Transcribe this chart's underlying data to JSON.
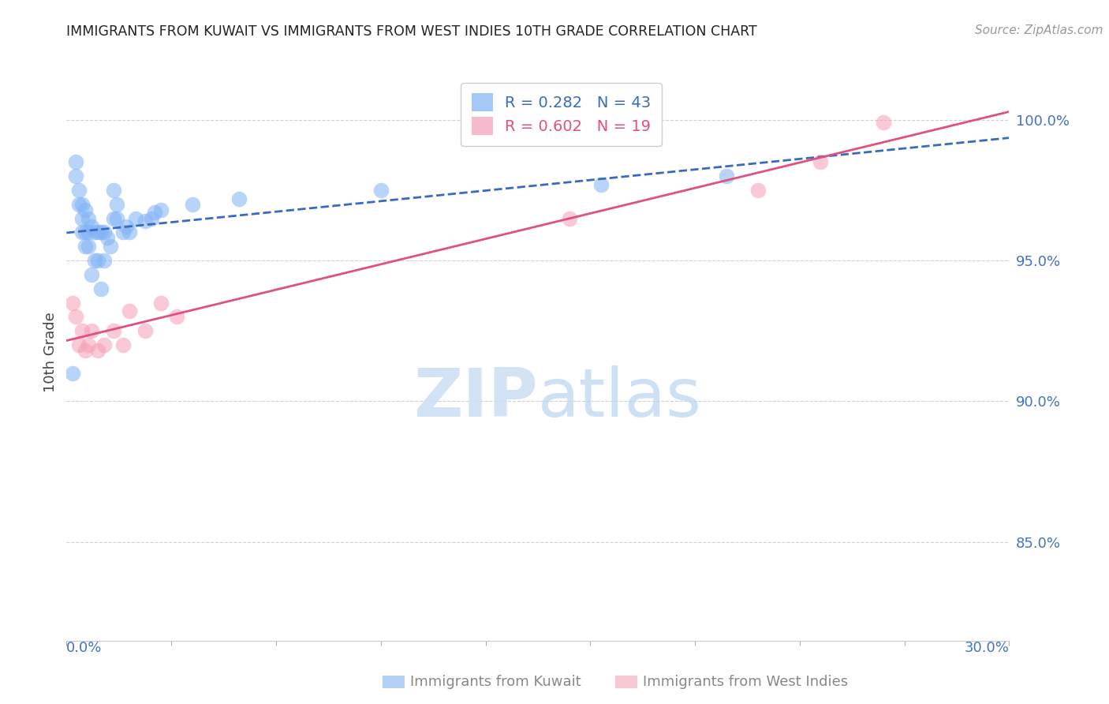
{
  "title": "IMMIGRANTS FROM KUWAIT VS IMMIGRANTS FROM WEST INDIES 10TH GRADE CORRELATION CHART",
  "source": "Source: ZipAtlas.com",
  "ylabel": "10th Grade",
  "ylabel_ticks": [
    "100.0%",
    "95.0%",
    "90.0%",
    "85.0%"
  ],
  "ylabel_values": [
    1.0,
    0.95,
    0.9,
    0.85
  ],
  "xmin": 0.0,
  "xmax": 0.3,
  "ymin": 0.815,
  "ymax": 1.02,
  "watermark_zip": "ZIP",
  "watermark_atlas": "atlas",
  "kuwait_color": "#7fb3f5",
  "westindies_color": "#f5a0b5",
  "kuwait_line_color": "#3a6abf",
  "westindies_line_color": "#e05080",
  "axis_label_color": "#4472c4",
  "grid_color": "#d0d0d0",
  "legend_r_kuwait": "R = 0.282",
  "legend_n_kuwait": "N = 43",
  "legend_r_wi": "R = 0.602",
  "legend_n_wi": "N = 19",
  "kuwait_x": [
    0.002,
    0.003,
    0.003,
    0.004,
    0.004,
    0.005,
    0.005,
    0.005,
    0.006,
    0.006,
    0.006,
    0.007,
    0.007,
    0.007,
    0.008,
    0.008,
    0.009,
    0.009,
    0.01,
    0.01,
    0.011,
    0.011,
    0.012,
    0.012,
    0.013,
    0.014,
    0.015,
    0.015,
    0.016,
    0.016,
    0.018,
    0.019,
    0.02,
    0.022,
    0.025,
    0.027,
    0.028,
    0.03,
    0.04,
    0.055,
    0.1,
    0.17,
    0.21
  ],
  "kuwait_y": [
    0.91,
    0.98,
    0.985,
    0.97,
    0.975,
    0.96,
    0.965,
    0.97,
    0.955,
    0.96,
    0.968,
    0.955,
    0.96,
    0.965,
    0.945,
    0.962,
    0.95,
    0.96,
    0.95,
    0.96,
    0.94,
    0.96,
    0.95,
    0.96,
    0.958,
    0.955,
    0.965,
    0.975,
    0.965,
    0.97,
    0.96,
    0.962,
    0.96,
    0.965,
    0.964,
    0.965,
    0.967,
    0.968,
    0.97,
    0.972,
    0.975,
    0.977,
    0.98
  ],
  "westindies_x": [
    0.002,
    0.003,
    0.004,
    0.005,
    0.006,
    0.007,
    0.008,
    0.01,
    0.012,
    0.015,
    0.018,
    0.02,
    0.025,
    0.03,
    0.035,
    0.16,
    0.22,
    0.24,
    0.26
  ],
  "westindies_y": [
    0.935,
    0.93,
    0.92,
    0.925,
    0.918,
    0.92,
    0.925,
    0.918,
    0.92,
    0.925,
    0.92,
    0.932,
    0.925,
    0.935,
    0.93,
    0.965,
    0.975,
    0.985,
    0.999
  ]
}
